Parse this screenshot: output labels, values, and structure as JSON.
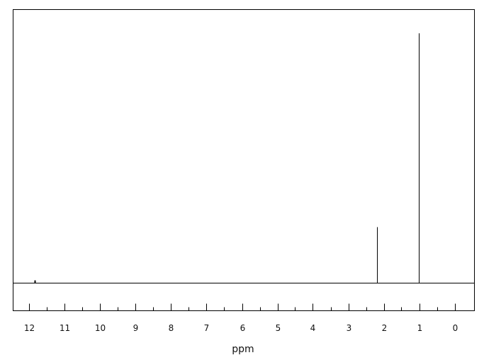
{
  "chart_data": {
    "type": "line",
    "title": "",
    "xlabel": "ppm",
    "ylabel": "",
    "xlim": [
      12.45,
      -0.55
    ],
    "x_reversed": true,
    "grid": false,
    "legend": "none",
    "major_ticks": [
      12,
      11,
      10,
      9,
      8,
      7,
      6,
      5,
      4,
      3,
      2,
      1,
      0
    ],
    "major_tick_labels": [
      "12",
      "11",
      "10",
      "9",
      "8",
      "7",
      "6",
      "5",
      "4",
      "3",
      "2",
      "1",
      "0"
    ],
    "minor_ticks": [
      11.5,
      10.5,
      9.5,
      8.5,
      7.5,
      6.5,
      5.5,
      4.5,
      3.5,
      2.5,
      1.5,
      0.5
    ],
    "series": [
      {
        "peaks": [
          {
            "x": 11.85,
            "intensity": 0.011
          },
          {
            "x": 2.2,
            "intensity": 0.224
          },
          {
            "x": 1.02,
            "intensity": 1.0
          }
        ]
      }
    ],
    "colors": {
      "axis": "#000000",
      "peak": "#000000",
      "background": "#ffffff"
    }
  }
}
